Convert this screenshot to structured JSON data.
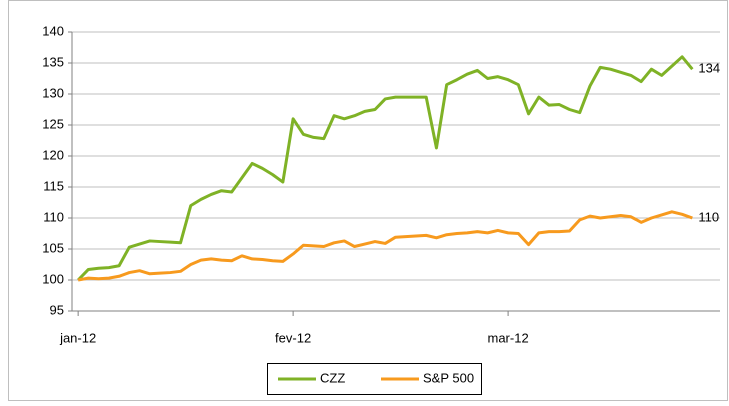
{
  "chart_data": {
    "type": "line",
    "x": [
      0,
      1,
      2,
      3,
      4,
      5,
      6,
      7,
      8,
      9,
      10,
      11,
      12,
      13,
      14,
      15,
      16,
      17,
      18,
      19,
      20,
      21,
      22,
      23,
      24,
      25,
      26,
      27,
      28,
      29,
      30,
      31,
      32,
      33,
      34,
      35,
      36,
      37,
      38,
      39,
      40,
      41,
      42,
      43,
      44,
      45,
      46,
      47,
      48,
      49,
      50,
      51,
      52,
      53,
      54,
      55,
      56,
      57,
      58,
      59,
      60
    ],
    "series": [
      {
        "name": "CZZ",
        "color": "#7fb226",
        "values": [
          100,
          101.7,
          101.9,
          102,
          102.3,
          105.3,
          105.8,
          106.3,
          106.2,
          106.1,
          106,
          112,
          113,
          113.8,
          114.4,
          114.2,
          116.5,
          118.8,
          118,
          117,
          115.8,
          126,
          123.5,
          123,
          122.8,
          126.5,
          126,
          126.5,
          127.2,
          127.5,
          129.2,
          129.5,
          129.5,
          129.5,
          129.5,
          121.3,
          131.5,
          132.3,
          133.2,
          133.8,
          132.5,
          132.8,
          132.3,
          131.5,
          126.8,
          129.5,
          128.2,
          128.3,
          127.5,
          127,
          131.3,
          134.3,
          134,
          133.5,
          133,
          132,
          134,
          133,
          134.5,
          136,
          134
        ]
      },
      {
        "name": "S&P 500",
        "color": "#f79a1e",
        "values": [
          100,
          100.3,
          100.2,
          100.3,
          100.6,
          101.2,
          101.5,
          101,
          101.1,
          101.2,
          101.4,
          102.5,
          103.2,
          103.4,
          103.2,
          103.1,
          103.9,
          103.4,
          103.3,
          103.1,
          103,
          104.2,
          105.6,
          105.5,
          105.4,
          106,
          106.3,
          105.4,
          105.8,
          106.2,
          105.9,
          106.9,
          107,
          107.1,
          107.2,
          106.8,
          107.3,
          107.5,
          107.6,
          107.8,
          107.6,
          108,
          107.6,
          107.5,
          105.7,
          107.6,
          107.8,
          107.8,
          107.9,
          109.7,
          110.3,
          110,
          110.2,
          110.4,
          110.2,
          109.3,
          110,
          110.5,
          111,
          110.6,
          110
        ]
      }
    ],
    "xlim": [
      -0.6,
      62.7
    ],
    "xticks": [
      {
        "value": 0,
        "label": "jan-12"
      },
      {
        "value": 21,
        "label": "fev-12"
      },
      {
        "value": 42,
        "label": "mar-12"
      }
    ],
    "ylim": [
      95,
      140
    ],
    "yticks": [
      95,
      100,
      105,
      110,
      115,
      120,
      125,
      130,
      135,
      140
    ],
    "grid": true,
    "legend": "bottom"
  }
}
